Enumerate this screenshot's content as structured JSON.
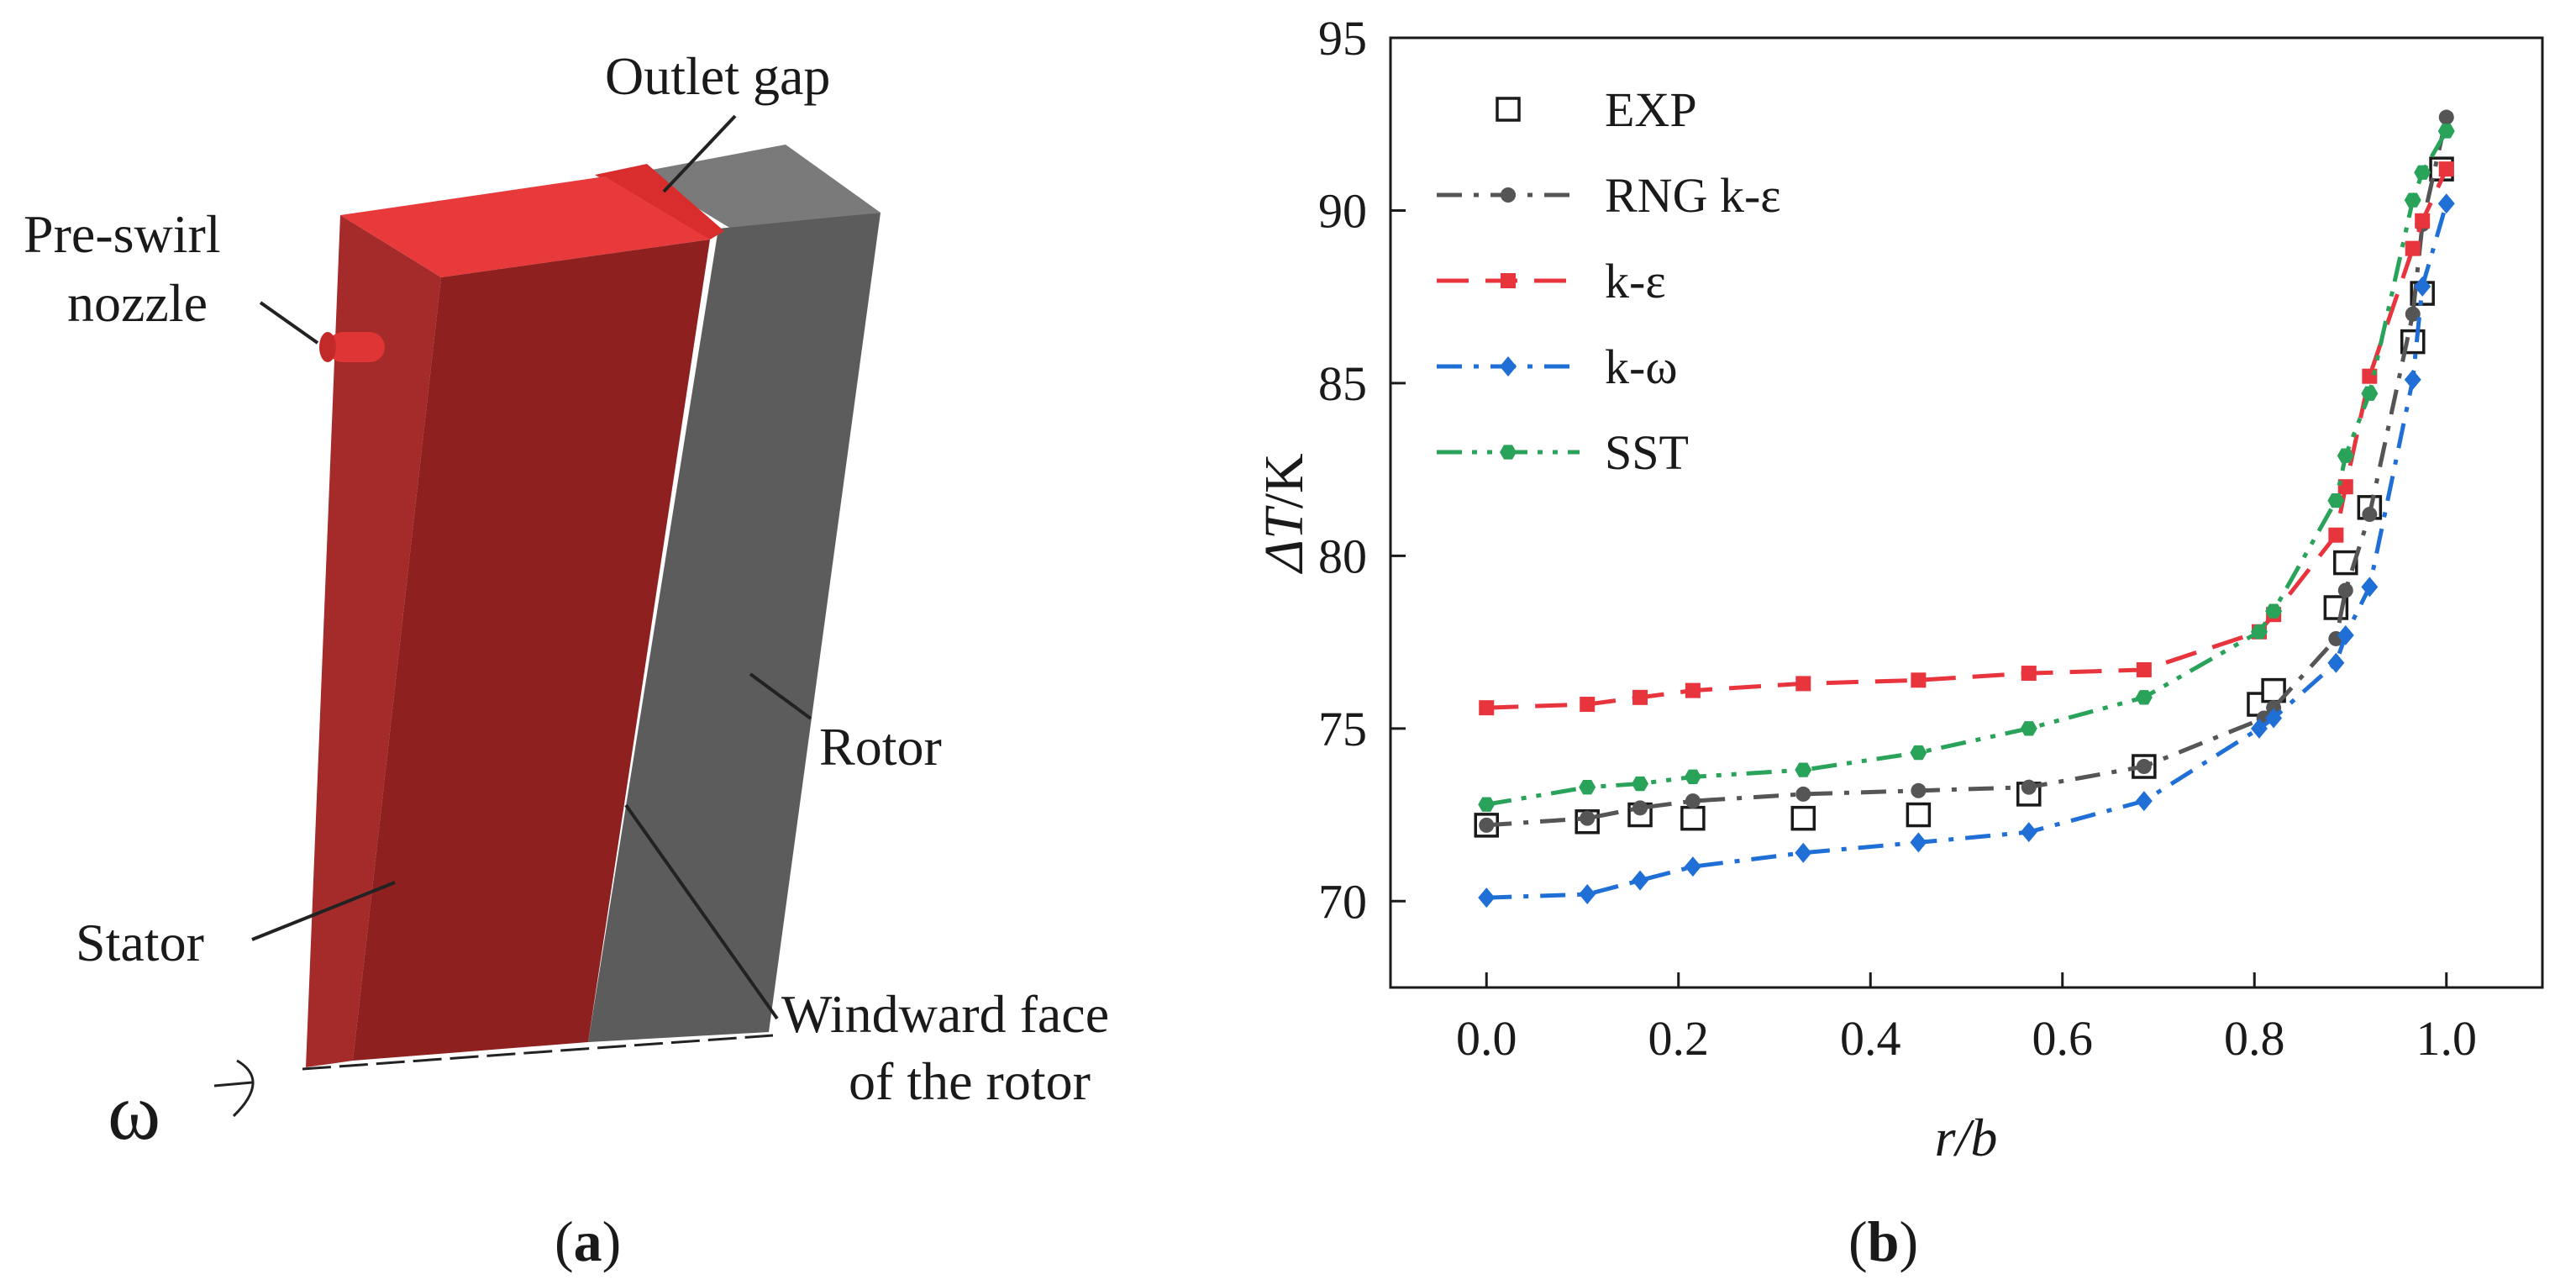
{
  "panel_a": {
    "labels": {
      "outlet_gap": "Outlet gap",
      "pre_swirl_line1": "Pre-swirl",
      "pre_swirl_line2": "nozzle",
      "rotor": "Rotor",
      "stator": "Stator",
      "windward_line1": "Windward face",
      "windward_line2": "of the rotor",
      "omega": "ω"
    },
    "colors": {
      "stator": "#8e2020",
      "stator_top": "#e03535",
      "rotor": "#5a5a5a",
      "rotor_top": "#7a7a7a"
    }
  },
  "captions": {
    "a_open": "(",
    "a_letter": "a",
    "a_close": ")",
    "b_open": "(",
    "b_letter": "b",
    "b_close": ")"
  },
  "chart_data": {
    "type": "line",
    "title": "",
    "xlabel": "r/b",
    "ylabel_prefix": "ΔT",
    "ylabel_unit": "/K",
    "xlim": [
      -0.1,
      1.1
    ],
    "ylim": [
      67.5,
      95
    ],
    "xticks": [
      0.0,
      0.2,
      0.4,
      0.6,
      0.8,
      1.0
    ],
    "xtick_labels": [
      "0.0",
      "0.2",
      "0.4",
      "0.6",
      "0.8",
      "1.0"
    ],
    "yticks": [
      70,
      75,
      80,
      85,
      90,
      95
    ],
    "ytick_labels": [
      "70",
      "75",
      "80",
      "85",
      "90",
      "95"
    ],
    "grid": false,
    "legend_position": "top-left",
    "series": [
      {
        "name": "EXP",
        "color": "#1a1a1a",
        "marker": "square-open",
        "line": "none",
        "x": [
          0.0,
          0.105,
          0.16,
          0.215,
          0.33,
          0.45,
          0.565,
          0.685,
          0.805,
          0.82,
          0.885,
          0.895,
          0.92,
          0.965,
          0.975,
          0.995
        ],
        "y": [
          72.2,
          72.3,
          72.5,
          72.4,
          72.4,
          72.5,
          73.1,
          73.9,
          75.7,
          76.1,
          78.5,
          79.8,
          81.4,
          86.2,
          87.6,
          91.2
        ]
      },
      {
        "name": "RNG k-ε",
        "color": "#555555",
        "marker": "circle",
        "line": "dashdot",
        "x": [
          0.0,
          0.105,
          0.16,
          0.215,
          0.33,
          0.45,
          0.565,
          0.685,
          0.81,
          0.82,
          0.885,
          0.895,
          0.92,
          0.965,
          0.975,
          1.0
        ],
        "y": [
          72.2,
          72.4,
          72.7,
          72.9,
          73.1,
          73.2,
          73.3,
          73.9,
          75.3,
          75.6,
          77.6,
          79.0,
          81.2,
          87.0,
          89.6,
          92.7
        ]
      },
      {
        "name": "k-ε",
        "color": "#e8343c",
        "marker": "square",
        "line": "dashed",
        "x": [
          0.0,
          0.105,
          0.16,
          0.215,
          0.33,
          0.45,
          0.565,
          0.685,
          0.805,
          0.82,
          0.885,
          0.895,
          0.92,
          0.965,
          0.975,
          1.0
        ],
        "y": [
          75.6,
          75.7,
          75.9,
          76.1,
          76.3,
          76.4,
          76.6,
          76.7,
          77.8,
          78.3,
          80.6,
          82.0,
          85.2,
          88.9,
          89.7,
          91.2
        ]
      },
      {
        "name": "k-ω",
        "color": "#1f6fd6",
        "marker": "diamond",
        "line": "dashdot",
        "x": [
          0.0,
          0.105,
          0.16,
          0.215,
          0.33,
          0.45,
          0.565,
          0.685,
          0.805,
          0.82,
          0.885,
          0.895,
          0.92,
          0.965,
          0.975,
          1.0
        ],
        "y": [
          70.1,
          70.2,
          70.6,
          71.0,
          71.4,
          71.7,
          72.0,
          72.9,
          75.0,
          75.3,
          76.9,
          77.7,
          79.1,
          85.1,
          87.8,
          90.2
        ]
      },
      {
        "name": "SST",
        "color": "#2aa35a",
        "marker": "hexagon",
        "line": "dashdotdot",
        "x": [
          0.0,
          0.105,
          0.16,
          0.215,
          0.33,
          0.45,
          0.565,
          0.685,
          0.805,
          0.82,
          0.885,
          0.895,
          0.92,
          0.965,
          0.975,
          1.0
        ],
        "y": [
          72.8,
          73.3,
          73.4,
          73.6,
          73.8,
          74.3,
          75.0,
          75.9,
          77.8,
          78.4,
          81.6,
          82.9,
          84.7,
          90.3,
          91.1,
          92.3
        ]
      }
    ]
  }
}
